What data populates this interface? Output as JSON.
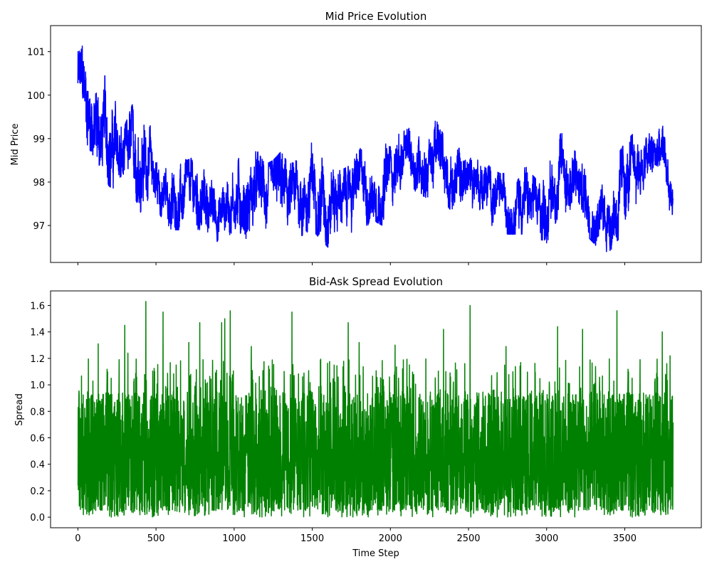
{
  "chart_data": [
    {
      "type": "line",
      "title": "Mid Price Evolution",
      "xlabel": "",
      "ylabel": "Mid Price",
      "xlim": [
        -175,
        3990
      ],
      "ylim": [
        96.15,
        101.6
      ],
      "xticks": [
        0,
        500,
        1000,
        1500,
        2000,
        2500,
        3000,
        3500
      ],
      "xticklabels_visible": false,
      "yticks": [
        97,
        98,
        99,
        100,
        101
      ],
      "ytick_labels": [
        "97",
        "98",
        "99",
        "100",
        "101"
      ],
      "grid": false,
      "legend": "none",
      "color": "#0000ff",
      "series": [
        {
          "n_points": 3810,
          "envelope_step": 50,
          "center": [
            100.4,
            99.9,
            99.2,
            99.0,
            98.9,
            98.6,
            98.3,
            98.4,
            98.9,
            98.5,
            98.0,
            97.6,
            97.4,
            97.5,
            97.7,
            97.6,
            97.5,
            97.4,
            97.3,
            97.5,
            97.7,
            97.5,
            97.6,
            97.9,
            97.7,
            97.8,
            97.9,
            97.6,
            97.6,
            97.6,
            97.8,
            97.8,
            97.9,
            97.8,
            97.7,
            97.9,
            98.0,
            97.8,
            97.8,
            97.7,
            98.3,
            98.5,
            98.6,
            98.5,
            98.5,
            98.5,
            98.7,
            98.4,
            98.1,
            98.0,
            98.1,
            98.2,
            98.0,
            97.8,
            97.6,
            97.6,
            97.6,
            97.7,
            97.4,
            97.2,
            97.5,
            97.9,
            98.4,
            98.1,
            97.9,
            97.7,
            97.4,
            97.2,
            97.3,
            97.5,
            97.8,
            98.2,
            98.4,
            98.5,
            98.6,
            98.6,
            97.6
          ],
          "high": [
            101.3,
            101.0,
            101.2,
            100.4,
            100.5,
            99.7,
            99.3,
            99.8,
            100.1,
            99.4,
            99.0,
            98.4,
            98.4,
            98.6,
            98.5,
            98.6,
            98.5,
            98.2,
            97.9,
            98.3,
            98.8,
            98.7,
            98.7,
            98.7,
            98.4,
            98.5,
            98.7,
            98.4,
            98.5,
            98.9,
            98.9,
            98.8,
            98.8,
            98.5,
            98.3,
            98.4,
            98.8,
            98.6,
            98.9,
            98.9,
            99.0,
            99.1,
            99.2,
            99.3,
            99.3,
            99.4,
            99.4,
            99.0,
            98.7,
            98.8,
            98.6,
            98.6,
            98.5,
            98.3,
            98.2,
            98.2,
            98.5,
            98.7,
            98.2,
            98.0,
            98.6,
            98.8,
            99.2,
            99.1,
            98.6,
            98.7,
            98.1,
            98.0,
            98.0,
            98.6,
            98.9,
            99.1,
            99.1,
            99.1,
            99.2,
            99.3,
            98.3
          ],
          "low": [
            99.5,
            98.9,
            98.6,
            98.3,
            97.9,
            97.8,
            97.6,
            97.8,
            97.3,
            97.6,
            97.4,
            97.1,
            96.9,
            96.9,
            97.0,
            96.9,
            96.9,
            96.8,
            96.6,
            96.7,
            96.9,
            96.8,
            96.6,
            96.9,
            96.6,
            96.5,
            96.5,
            96.4,
            96.7,
            96.8,
            96.9,
            96.7,
            96.5,
            96.8,
            96.8,
            96.8,
            97.1,
            97.0,
            97.1,
            97.0,
            97.4,
            97.6,
            97.7,
            97.7,
            97.7,
            97.6,
            97.8,
            97.5,
            97.3,
            97.1,
            97.2,
            97.4,
            97.1,
            97.0,
            96.9,
            96.8,
            96.8,
            96.8,
            96.6,
            96.5,
            96.6,
            97.0,
            97.4,
            97.2,
            97.0,
            96.8,
            96.6,
            96.4,
            96.4,
            96.6,
            96.9,
            97.2,
            97.5,
            97.7,
            97.8,
            97.8,
            97.0
          ]
        }
      ]
    },
    {
      "type": "line",
      "title": "Bid-Ask Spread Evolution",
      "xlabel": "Time Step",
      "ylabel": "Spread",
      "xlim": [
        -175,
        3990
      ],
      "ylim": [
        -0.08,
        1.71
      ],
      "xticks": [
        0,
        500,
        1000,
        1500,
        2000,
        2500,
        3000,
        3500
      ],
      "xtick_labels": [
        "0",
        "500",
        "1000",
        "1500",
        "2000",
        "2500",
        "3000",
        "3500"
      ],
      "yticks": [
        0.0,
        0.2,
        0.4,
        0.6,
        0.8,
        1.0,
        1.2,
        1.4,
        1.6
      ],
      "ytick_labels": [
        "0.0",
        "0.2",
        "0.4",
        "0.6",
        "0.8",
        "1.0",
        "1.2",
        "1.4",
        "1.6"
      ],
      "grid": false,
      "legend": "none",
      "color": "#008000",
      "series": [
        {
          "n_points": 3810,
          "values_range": [
            0.0,
            1.63
          ],
          "typical_range": [
            0.05,
            0.9
          ],
          "peaks": [
            {
              "x": 5,
              "y": 0.63
            },
            {
              "x": 130,
              "y": 1.31
            },
            {
              "x": 300,
              "y": 1.45
            },
            {
              "x": 320,
              "y": 1.24
            },
            {
              "x": 435,
              "y": 1.63
            },
            {
              "x": 545,
              "y": 1.55
            },
            {
              "x": 710,
              "y": 1.32
            },
            {
              "x": 780,
              "y": 1.47
            },
            {
              "x": 920,
              "y": 1.47
            },
            {
              "x": 940,
              "y": 1.5
            },
            {
              "x": 975,
              "y": 1.56
            },
            {
              "x": 1110,
              "y": 1.29
            },
            {
              "x": 1370,
              "y": 1.55
            },
            {
              "x": 1730,
              "y": 1.47
            },
            {
              "x": 1800,
              "y": 1.32
            },
            {
              "x": 2030,
              "y": 1.3
            },
            {
              "x": 2340,
              "y": 1.42
            },
            {
              "x": 2510,
              "y": 1.6
            },
            {
              "x": 2740,
              "y": 1.29
            },
            {
              "x": 3070,
              "y": 1.44
            },
            {
              "x": 3230,
              "y": 1.42
            },
            {
              "x": 3450,
              "y": 1.56
            },
            {
              "x": 3740,
              "y": 1.4
            },
            {
              "x": 3790,
              "y": 1.22
            }
          ]
        }
      ]
    }
  ]
}
